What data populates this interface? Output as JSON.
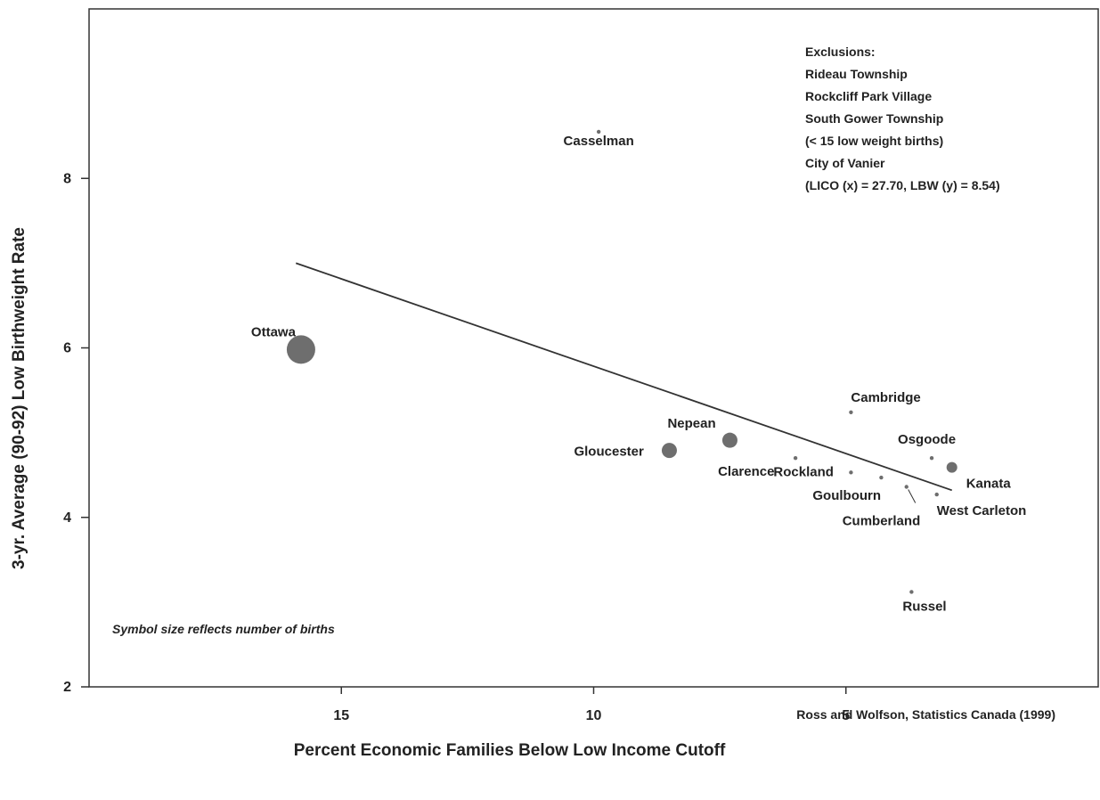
{
  "chart_data": {
    "type": "scatter",
    "title": "",
    "xlabel": "Percent Economic Families Below Low Income Cutoff",
    "ylabel": "3-yr. Average (90-92) Low Birthweight Rate",
    "x_reversed": true,
    "xlim": [
      20,
      0
    ],
    "ylim": [
      2,
      10
    ],
    "x_ticks": [
      15,
      10,
      5
    ],
    "y_ticks": [
      8,
      6,
      4,
      2
    ],
    "grid": false,
    "point_color": "#6e6e6e",
    "points": [
      {
        "name": "Casselman",
        "x": 9.9,
        "y": 8.55,
        "size": "tiny"
      },
      {
        "name": "Ottawa",
        "x": 15.8,
        "y": 5.98,
        "size": "very large"
      },
      {
        "name": "Cambridge",
        "x": 4.9,
        "y": 5.24,
        "size": "tiny"
      },
      {
        "name": "Nepean",
        "x": 7.3,
        "y": 4.91,
        "size": "medium"
      },
      {
        "name": "Gloucester",
        "x": 8.5,
        "y": 4.79,
        "size": "medium"
      },
      {
        "name": "Clarence",
        "x": 6.0,
        "y": 4.7,
        "size": "tiny"
      },
      {
        "name": "Osgoode",
        "x": 3.3,
        "y": 4.7,
        "size": "tiny"
      },
      {
        "name": "Kanata",
        "x": 2.9,
        "y": 4.59,
        "size": "small"
      },
      {
        "name": "Rockland",
        "x": 4.9,
        "y": 4.53,
        "size": "tiny"
      },
      {
        "name": "Goulbourn",
        "x": 4.3,
        "y": 4.47,
        "size": "tiny"
      },
      {
        "name": "Cumberland",
        "x": 3.8,
        "y": 4.36,
        "size": "tiny"
      },
      {
        "name": "West Carleton",
        "x": 3.2,
        "y": 4.27,
        "size": "tiny"
      },
      {
        "name": "Russel",
        "x": 3.7,
        "y": 3.12,
        "size": "tiny"
      }
    ],
    "trendline": {
      "x": [
        15.9,
        2.9
      ],
      "y": [
        7.0,
        4.32
      ]
    },
    "annotations": {
      "exclusions": [
        "Exclusions:",
        "Rideau Township",
        "Rockcliff Park Village",
        "South Gower Township",
        "(< 15 low weight births)",
        "City of Vanier",
        "(LICO (x) = 27.70, LBW (y) = 8.54)"
      ],
      "note": "Symbol size reflects number of births",
      "source": "Ross and Wolfson, Statistics Canada (1999)"
    }
  }
}
